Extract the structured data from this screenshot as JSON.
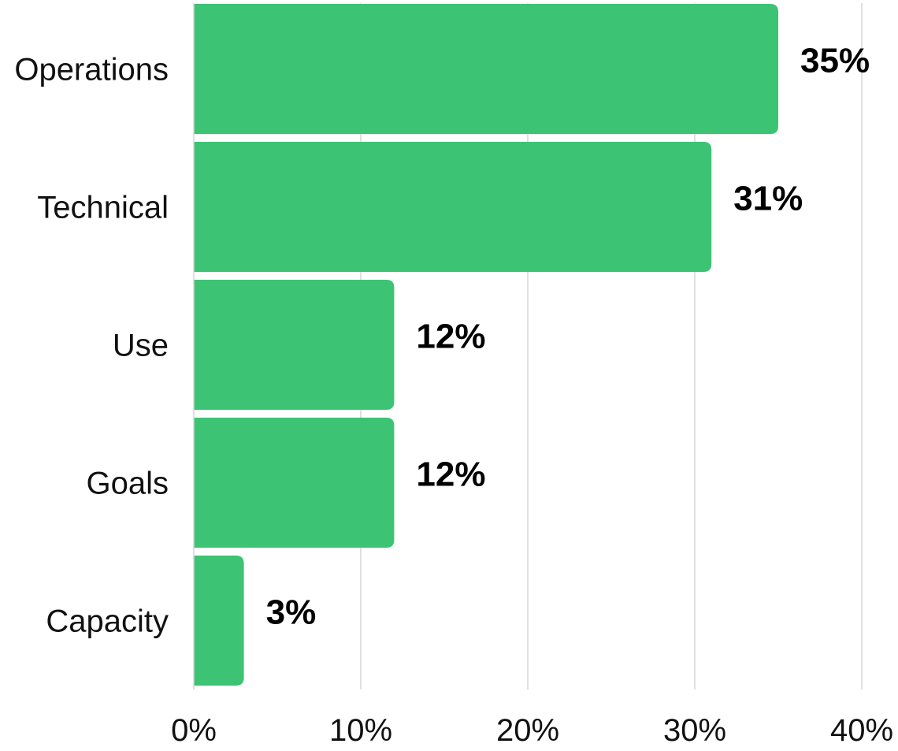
{
  "chart_data": {
    "type": "bar",
    "orientation": "horizontal",
    "categories": [
      "Operations",
      "Technical",
      "Use",
      "Goals",
      "Capacity"
    ],
    "values": [
      35,
      31,
      12,
      12,
      3
    ],
    "value_labels": [
      "35%",
      "31%",
      "12%",
      "12%",
      "3%"
    ],
    "xlim": [
      0,
      40
    ],
    "x_ticks": [
      0,
      10,
      20,
      30,
      40
    ],
    "x_tick_labels": [
      "0%",
      "10%",
      "20%",
      "30%",
      "40%"
    ],
    "title": "",
    "xlabel": "",
    "ylabel": "",
    "grid": "vertical",
    "legend": "none",
    "bar_color": "#3cc373",
    "grid_color": "#d6d6d6"
  }
}
